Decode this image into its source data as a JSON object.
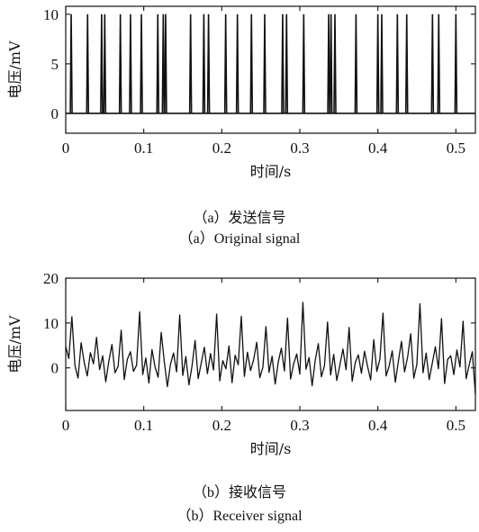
{
  "chart_data": [
    {
      "type": "line",
      "xlabel": "时间/s",
      "ylabel": "电压/mV",
      "xlim": [
        0,
        0.525
      ],
      "ylim": [
        -2,
        10.8
      ],
      "xticks": [
        "0",
        "0.1",
        "0.2",
        "0.3",
        "0.4",
        "0.5"
      ],
      "yticks": [
        "0",
        "5",
        "10"
      ],
      "grid": false,
      "caption_cn": "（a）发送信号",
      "caption_en": "（a）Original signal",
      "series": [
        {
          "baseline": 0,
          "pulse_height": 10,
          "pulse_times": [
            0.007,
            0.028,
            0.046,
            0.05,
            0.07,
            0.083,
            0.097,
            0.118,
            0.125,
            0.128,
            0.16,
            0.177,
            0.183,
            0.205,
            0.22,
            0.238,
            0.255,
            0.278,
            0.283,
            0.305,
            0.337,
            0.34,
            0.345,
            0.372,
            0.4,
            0.405,
            0.425,
            0.437,
            0.47,
            0.478,
            0.5
          ]
        }
      ]
    },
    {
      "type": "line",
      "xlabel": "时间/s",
      "ylabel": "电压/mV",
      "xlim": [
        0,
        0.525
      ],
      "ylim": [
        -9.5,
        20
      ],
      "xticks": [
        "0",
        "0.1",
        "0.2",
        "0.3",
        "0.4",
        "0.5"
      ],
      "yticks": [
        "0",
        "10",
        "20"
      ],
      "grid": false,
      "caption_cn": "（b）接收信号",
      "caption_en": "（b）Receiver signal",
      "series": [
        {
          "x_start": 0,
          "x_end": 0.525,
          "values": [
            4.8,
            2.1,
            11.4,
            0.5,
            -2.3,
            5.6,
            1.2,
            -1.8,
            3.4,
            0.9,
            6.8,
            -0.4,
            2.7,
            -3.1,
            1.5,
            5.2,
            -1.1,
            0.3,
            8.4,
            -2.6,
            1.9,
            3.6,
            -0.8,
            0.6,
            12.5,
            -1.5,
            2.2,
            -3.4,
            4.1,
            0.2,
            -2.1,
            7.9,
            1.4,
            -4.2,
            0.8,
            3.3,
            -0.9,
            11.8,
            -1.7,
            2.5,
            -3.8,
            0.4,
            6.1,
            -2.4,
            1.1,
            4.6,
            -1.3,
            3.2,
            -0.5,
            12.0,
            -2.9,
            1.6,
            -0.2,
            4.9,
            -3.3,
            2.8,
            0.7,
            11.5,
            -1.9,
            3.5,
            -0.6,
            1.8,
            5.7,
            -2.2,
            0.1,
            9.2,
            -1.0,
            2.6,
            -3.6,
            1.3,
            4.4,
            -0.7,
            11.1,
            -2.5,
            0.9,
            3.1,
            -1.4,
            14.6,
            -0.3,
            2.3,
            -4.0,
            1.7,
            5.4,
            -2.0,
            0.5,
            10.2,
            -1.6,
            3.0,
            -2.8,
            0.6,
            4.2,
            -0.4,
            9.0,
            -3.0,
            1.2,
            2.9,
            -1.2,
            3.7,
            0.3,
            -2.7,
            6.3,
            -0.8,
            2.0,
            12.2,
            -1.8,
            0.4,
            3.8,
            -3.2,
            1.5,
            5.9,
            -0.9,
            2.4,
            7.6,
            -2.3,
            0.8,
            14.3,
            -1.1,
            3.3,
            -2.6,
            1.0,
            4.7,
            -0.2,
            11.0,
            -3.5,
            1.9,
            2.7,
            -1.5,
            4.0,
            0.2,
            10.4,
            -2.4,
            0.7,
            3.6,
            -5.9
          ]
        }
      ]
    }
  ]
}
